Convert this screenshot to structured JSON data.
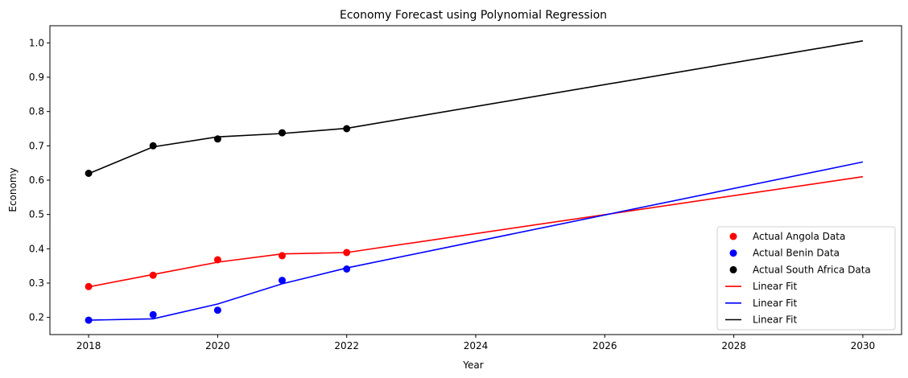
{
  "chart_data": {
    "type": "line",
    "title": "Economy Forecast using Polynomial Regression",
    "xlabel": "Year",
    "ylabel": "Economy",
    "xlim": [
      2017.4,
      2030.6
    ],
    "ylim": [
      0.15,
      1.05
    ],
    "xticks": [
      2018,
      2020,
      2022,
      2024,
      2026,
      2028,
      2030
    ],
    "yticks": [
      0.2,
      0.3,
      0.4,
      0.5,
      0.6,
      0.7,
      0.8,
      0.9,
      1.0
    ],
    "grid": false,
    "legend_position": "lower-right",
    "scatter_series": [
      {
        "name": "Actual Angola Data",
        "color": "#ff0000",
        "points": [
          [
            2018,
            0.29
          ],
          [
            2019,
            0.323
          ],
          [
            2020,
            0.368
          ],
          [
            2021,
            0.38
          ],
          [
            2022,
            0.389
          ]
        ]
      },
      {
        "name": "Actual Benin Data",
        "color": "#0000ff",
        "points": [
          [
            2018,
            0.192
          ],
          [
            2019,
            0.208
          ],
          [
            2020,
            0.221
          ],
          [
            2021,
            0.308
          ],
          [
            2022,
            0.341
          ]
        ]
      },
      {
        "name": "Actual South Africa Data",
        "color": "#000000",
        "points": [
          [
            2018,
            0.62
          ],
          [
            2019,
            0.7
          ],
          [
            2020,
            0.72
          ],
          [
            2021,
            0.738
          ],
          [
            2022,
            0.75
          ]
        ]
      }
    ],
    "line_series": [
      {
        "name": "Linear Fit",
        "color": "#ff0000",
        "points": [
          [
            2018,
            0.289
          ],
          [
            2019,
            0.325
          ],
          [
            2020,
            0.361
          ],
          [
            2021,
            0.385
          ],
          [
            2022,
            0.389
          ],
          [
            2030,
            0.61
          ]
        ]
      },
      {
        "name": "Linear Fit",
        "color": "#0000ff",
        "points": [
          [
            2018,
            0.192
          ],
          [
            2019,
            0.196
          ],
          [
            2020,
            0.239
          ],
          [
            2021,
            0.298
          ],
          [
            2022,
            0.344
          ],
          [
            2030,
            0.653
          ]
        ]
      },
      {
        "name": "Linear Fit",
        "color": "#000000",
        "points": [
          [
            2018,
            0.619
          ],
          [
            2019,
            0.697
          ],
          [
            2020,
            0.726
          ],
          [
            2021,
            0.736
          ],
          [
            2022,
            0.751
          ],
          [
            2030,
            1.006
          ]
        ]
      }
    ]
  }
}
